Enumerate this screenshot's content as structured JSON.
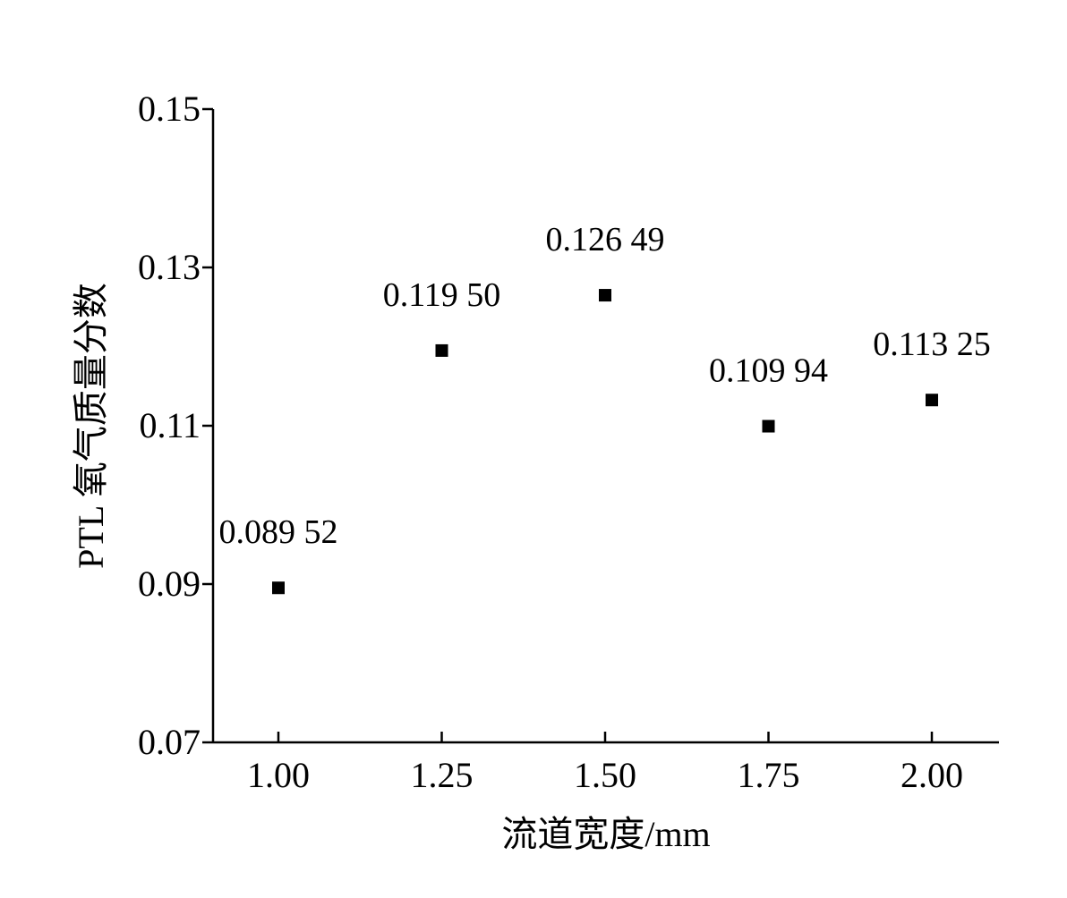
{
  "chart_data": {
    "type": "scatter",
    "title": "",
    "xlabel": "流道宽度/mm",
    "ylabel": "PTL 氧气质量分数",
    "xlim": [
      0.9,
      2.1
    ],
    "ylim": [
      0.07,
      0.15
    ],
    "x_ticks": [
      1.0,
      1.25,
      1.5,
      1.75,
      2.0
    ],
    "x_tick_labels": [
      "1.00",
      "1.25",
      "1.50",
      "1.75",
      "2.00"
    ],
    "y_ticks": [
      0.07,
      0.09,
      0.11,
      0.13,
      0.15
    ],
    "y_tick_labels": [
      "0.07",
      "0.09",
      "0.11",
      "0.13",
      "0.15"
    ],
    "grid": false,
    "marker": "square",
    "marker_color": "#000000",
    "points": [
      {
        "x": 1.0,
        "y": 0.08952,
        "label": "0.089 52"
      },
      {
        "x": 1.25,
        "y": 0.1195,
        "label": "0.119 50"
      },
      {
        "x": 1.5,
        "y": 0.12649,
        "label": "0.126 49"
      },
      {
        "x": 1.75,
        "y": 0.10994,
        "label": "0.109 94"
      },
      {
        "x": 2.0,
        "y": 0.11325,
        "label": "0.113 25"
      }
    ]
  }
}
